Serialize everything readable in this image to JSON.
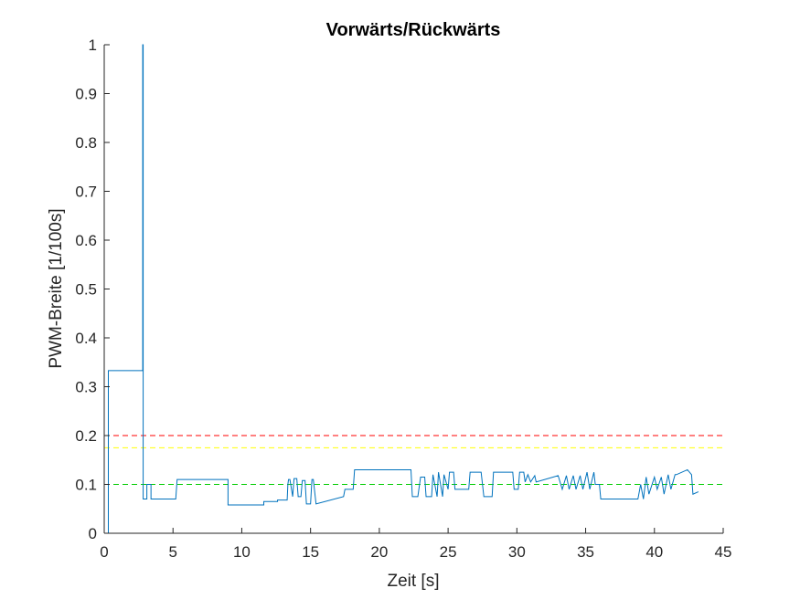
{
  "chart_data": {
    "type": "line",
    "title": "Vorwärts/Rückwärts",
    "xlabel": "Zeit [s]",
    "ylabel": "PWM-Breite [1/100s]",
    "xlim": [
      0,
      45
    ],
    "ylim": [
      0,
      1
    ],
    "xticks": [
      0,
      5,
      10,
      15,
      20,
      25,
      30,
      35,
      40,
      45
    ],
    "yticks": [
      0,
      0.1,
      0.2,
      0.3,
      0.4,
      0.5,
      0.6,
      0.7,
      0.8,
      0.9,
      1
    ],
    "grid": false,
    "legend": "none",
    "thresholds": [
      {
        "y": 0.2,
        "color": "#ff0000",
        "style": "dashed"
      },
      {
        "y": 0.175,
        "color": "#ffff00",
        "style": "dashed"
      },
      {
        "y": 0.1,
        "color": "#00cc00",
        "style": "dashed"
      }
    ],
    "series": [
      {
        "color": "#0072bd",
        "x": [
          0,
          0.3,
          0.3,
          0.4,
          0.4,
          2.8,
          2.8,
          2.83,
          2.83,
          3.1,
          3.1,
          3.4,
          3.4,
          5.2,
          5.3,
          8.8,
          8.8,
          9.0,
          9.0,
          11.6,
          11.6,
          12.6,
          12.6,
          13.3,
          13.35,
          13.4,
          13.5,
          13.7,
          13.8,
          14.0,
          14.1,
          14.3,
          14.4,
          14.6,
          14.7,
          15.0,
          15.1,
          15.2,
          15.4,
          17.4,
          17.5,
          18.1,
          18.2,
          22.3,
          22.4,
          22.8,
          23.0,
          23.3,
          23.4,
          23.8,
          23.9,
          24.2,
          24.3,
          24.6,
          24.7,
          25.0,
          25.1,
          25.4,
          25.5,
          26.5,
          26.6,
          27.4,
          27.6,
          28.2,
          28.3,
          29.7,
          29.8,
          30.1,
          30.2,
          30.5,
          30.6,
          30.8,
          31.0,
          31.3,
          31.4,
          33.0,
          33.3,
          33.6,
          33.8,
          34.1,
          34.3,
          34.6,
          34.8,
          35.1,
          35.3,
          35.6,
          35.7,
          36.0,
          36.1,
          38.7,
          38.8,
          39.0,
          39.2,
          39.4,
          39.6,
          40.0,
          40.2,
          40.5,
          40.7,
          41.0,
          41.2,
          41.5,
          41.6,
          42.4,
          42.7,
          42.8,
          43.2
        ],
        "y": [
          0,
          0,
          0.333,
          0.333,
          0.333,
          0.333,
          1.0,
          1.0,
          0.07,
          0.07,
          0.1,
          0.1,
          0.07,
          0.07,
          0.11,
          0.11,
          0.11,
          0.11,
          0.058,
          0.058,
          0.065,
          0.065,
          0.068,
          0.068,
          0.1,
          0.11,
          0.11,
          0.075,
          0.112,
          0.112,
          0.075,
          0.075,
          0.108,
          0.108,
          0.06,
          0.06,
          0.11,
          0.11,
          0.06,
          0.075,
          0.09,
          0.09,
          0.13,
          0.13,
          0.075,
          0.075,
          0.115,
          0.115,
          0.075,
          0.075,
          0.12,
          0.075,
          0.125,
          0.075,
          0.12,
          0.09,
          0.125,
          0.125,
          0.09,
          0.09,
          0.125,
          0.125,
          0.075,
          0.075,
          0.125,
          0.125,
          0.09,
          0.09,
          0.125,
          0.125,
          0.105,
          0.12,
          0.105,
          0.118,
          0.105,
          0.118,
          0.09,
          0.118,
          0.09,
          0.118,
          0.09,
          0.118,
          0.09,
          0.125,
          0.09,
          0.125,
          0.1,
          0.1,
          0.07,
          0.07,
          0.07,
          0.1,
          0.07,
          0.115,
          0.08,
          0.115,
          0.09,
          0.115,
          0.08,
          0.12,
          0.09,
          0.12,
          0.12,
          0.13,
          0.12,
          0.08,
          0.085
        ]
      }
    ]
  }
}
